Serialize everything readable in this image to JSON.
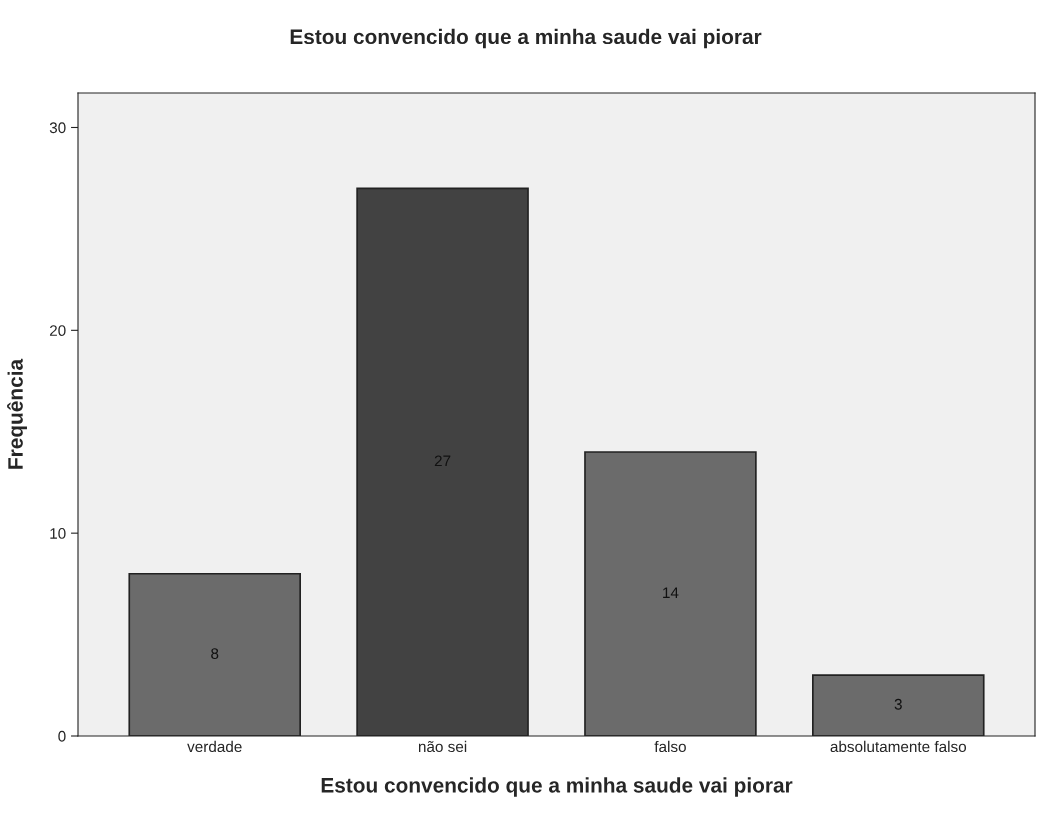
{
  "chart_data": {
    "type": "bar",
    "title": "Estou convencido que a minha saude vai piorar",
    "xlabel": "Estou convencido que a minha saude vai piorar",
    "ylabel": "Frequência",
    "categories": [
      "verdade",
      "não sei",
      "falso",
      "absolutamente falso"
    ],
    "values": [
      8,
      27,
      14,
      3
    ],
    "colors": [
      "#6b6b6b",
      "#424242",
      "#6b6b6b",
      "#6b6b6b"
    ],
    "ylim": [
      0,
      31.7
    ],
    "yticks": [
      0,
      10,
      20,
      30
    ],
    "data_labels": true,
    "grid": false
  }
}
